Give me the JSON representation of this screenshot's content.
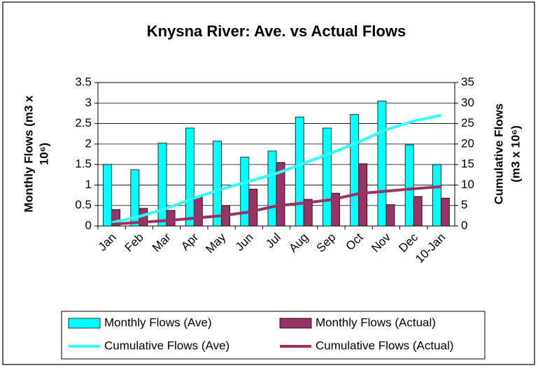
{
  "chart_data": {
    "type": "bar",
    "title": "Knysna River: Ave. vs Actual Flows",
    "ylabel": [
      "Monthly Flows (m3 x",
      "10⁶)"
    ],
    "y2label": [
      "Cumulative Flows",
      "(m3 x 10⁶)"
    ],
    "categories": [
      "Jan",
      "Feb",
      "Mar",
      "Apr",
      "May",
      "Jun",
      "Jul",
      "Aug",
      "Sep",
      "Oct",
      "Nov",
      "Dec",
      "10-Jan"
    ],
    "series": [
      {
        "name": "Monthly Flows (Ave)",
        "type": "bar",
        "color": "#00ffff",
        "values": [
          1.5,
          1.37,
          2.02,
          2.39,
          2.07,
          1.68,
          1.83,
          2.66,
          2.39,
          2.72,
          3.05,
          1.98,
          1.5
        ]
      },
      {
        "name": "Monthly Flows (Actual)",
        "type": "bar",
        "color": "#993366",
        "values": [
          0.4,
          0.43,
          0.38,
          0.7,
          0.5,
          0.9,
          1.55,
          0.65,
          0.8,
          1.52,
          0.52,
          0.72,
          0.68
        ]
      },
      {
        "name": "Cumulative Flows (Ave)",
        "type": "line",
        "axis": "y2",
        "color": "#33ffff",
        "values": [
          0.8,
          2.3,
          4.3,
          6.8,
          9.0,
          10.9,
          12.8,
          15.3,
          17.8,
          20.5,
          23.5,
          25.6,
          27.0
        ]
      },
      {
        "name": "Cumulative Flows (Actual)",
        "type": "line",
        "axis": "y2",
        "color": "#993366",
        "values": [
          0.4,
          0.9,
          1.3,
          1.9,
          2.5,
          3.4,
          4.9,
          5.6,
          6.4,
          7.9,
          8.5,
          9.1,
          9.6
        ]
      }
    ],
    "ylim": [
      0,
      3.5
    ],
    "yticks": [
      0,
      0.5,
      1,
      1.5,
      2,
      2.5,
      3,
      3.5
    ],
    "y2lim": [
      0,
      35
    ],
    "y2ticks": [
      0,
      5,
      10,
      15,
      20,
      25,
      30,
      35
    ],
    "grid": true,
    "legend": "bottom"
  }
}
